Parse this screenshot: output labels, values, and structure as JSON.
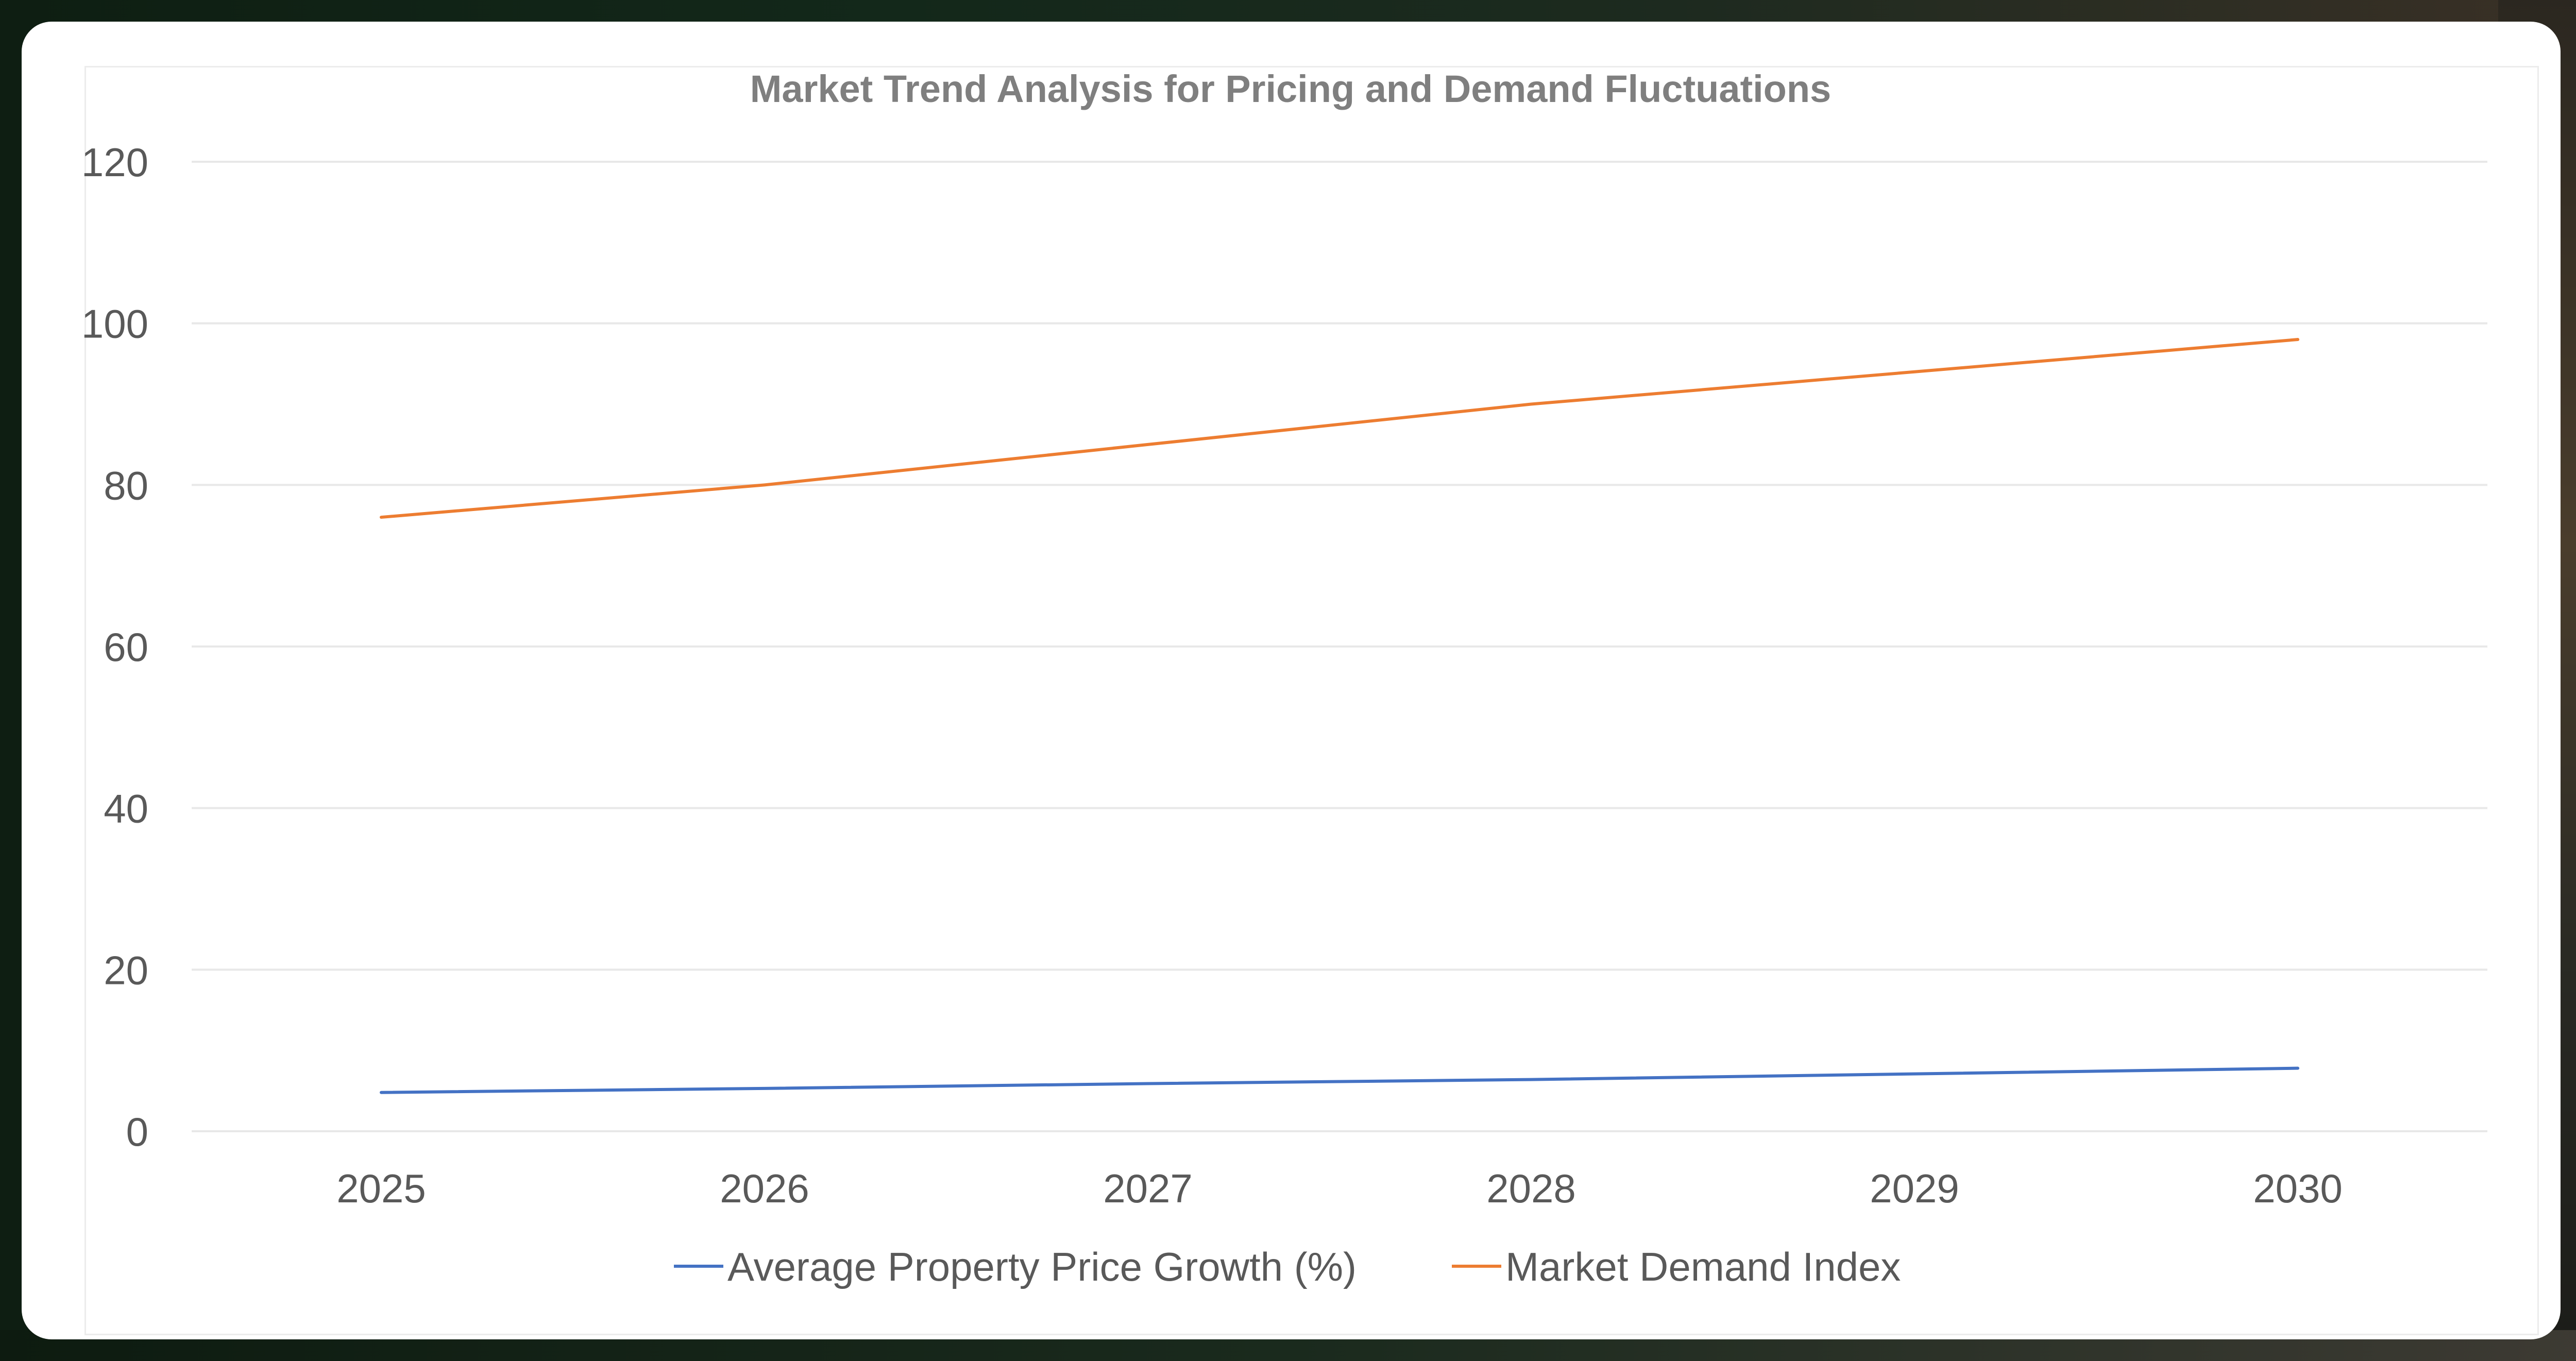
{
  "chart_data": {
    "type": "line",
    "title": "Market Trend Analysis for Pricing and Demand Fluctuations",
    "xlabel": "",
    "ylabel": "",
    "categories": [
      "2025",
      "2026",
      "2027",
      "2028",
      "2029",
      "2030"
    ],
    "ylim": [
      0,
      120
    ],
    "yticks": [
      "0",
      "20",
      "40",
      "60",
      "80",
      "100",
      "120"
    ],
    "grid": "horizontal",
    "legend_position": "bottom",
    "series": [
      {
        "name": "Average Property Price Growth (%)",
        "color": "#4472c4",
        "values": [
          4.8,
          5.3,
          5.9,
          6.4,
          7.1,
          7.8
        ]
      },
      {
        "name": "Market Demand Index",
        "color": "#ed7d31",
        "values": [
          76,
          80,
          85,
          90,
          94,
          98
        ]
      }
    ]
  }
}
